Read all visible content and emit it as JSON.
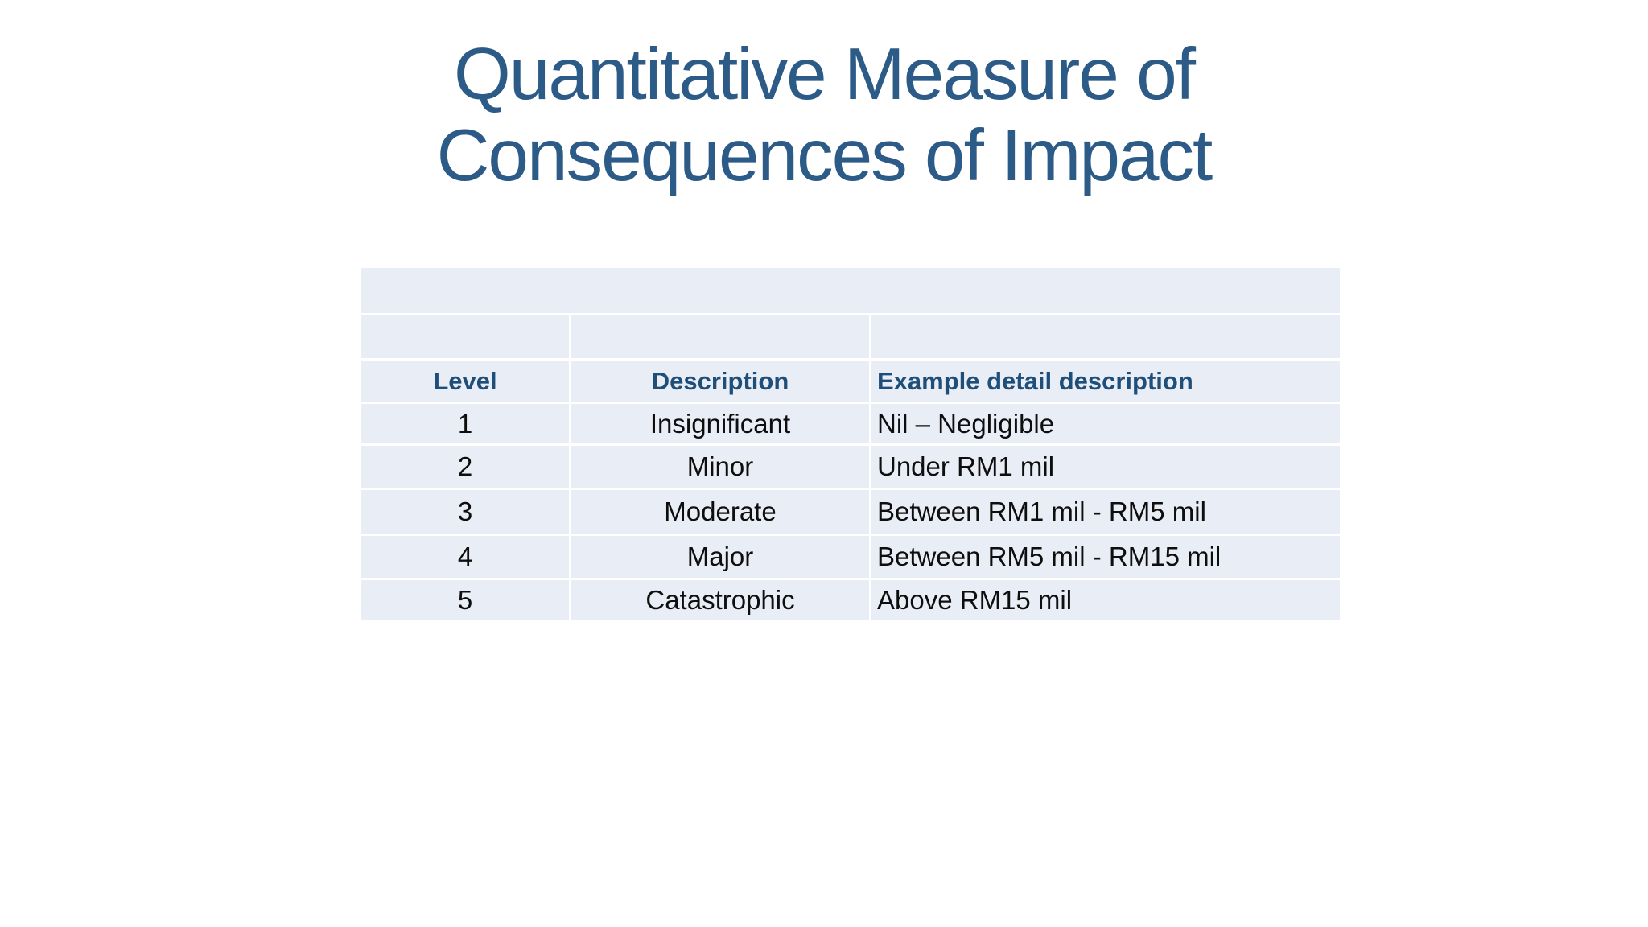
{
  "title": {
    "line1": "Quantitative Measure of",
    "line2": "Consequences of Impact"
  },
  "table": {
    "headers": [
      "Level",
      "Description",
      "Example detail description"
    ],
    "rows": [
      {
        "level": "1",
        "description": "Insignificant",
        "example": "Nil – Negligible"
      },
      {
        "level": "2",
        "description": "Minor",
        "example": "Under RM1 mil"
      },
      {
        "level": "3",
        "description": "Moderate",
        "example": "Between RM1 mil - RM5 mil"
      },
      {
        "level": "4",
        "description": "Major",
        "example": "Between RM5 mil - RM15 mil"
      },
      {
        "level": "5",
        "description": "Catastrophic",
        "example": "Above RM15 mil"
      }
    ]
  },
  "colors": {
    "title_text": "#2d5b87",
    "header_text": "#1f4e79",
    "body_text": "#0e0e0e",
    "cell_background": "#e9edf5",
    "gridline": "#ffffff",
    "page_background": "#ffffff"
  }
}
